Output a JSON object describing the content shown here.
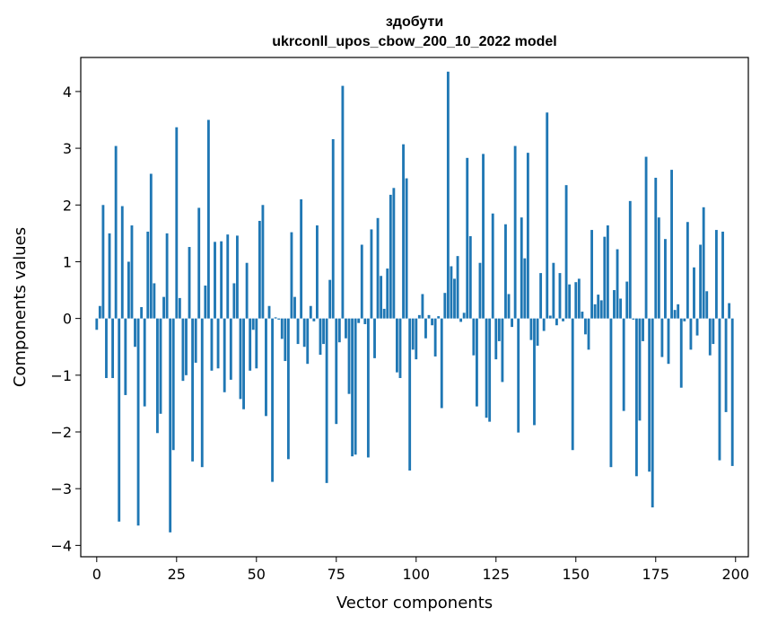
{
  "chart_data": {
    "type": "bar",
    "title_line1": "здобути",
    "title_line2": "ukrconll_upos_cbow_200_10_2022 model",
    "xlabel": "Vector components",
    "ylabel": "Components values",
    "xlim": [
      -5,
      204
    ],
    "ylim": [
      -4.2,
      4.6
    ],
    "xticks": [
      0,
      25,
      50,
      75,
      100,
      125,
      150,
      175,
      200
    ],
    "yticks": [
      -4,
      -3,
      -2,
      -1,
      0,
      1,
      2,
      3,
      4
    ],
    "xtick_labels": [
      "0",
      "25",
      "50",
      "75",
      "100",
      "125",
      "150",
      "175",
      "200"
    ],
    "ytick_labels": [
      "−4",
      "−3",
      "−2",
      "−1",
      "0",
      "1",
      "2",
      "3",
      "4"
    ],
    "bar_color": "#1f77b4",
    "grid": false,
    "legend": "none",
    "x": [
      0,
      1,
      2,
      3,
      4,
      5,
      6,
      7,
      8,
      9,
      10,
      11,
      12,
      13,
      14,
      15,
      16,
      17,
      18,
      19,
      20,
      21,
      22,
      23,
      24,
      25,
      26,
      27,
      28,
      29,
      30,
      31,
      32,
      33,
      34,
      35,
      36,
      37,
      38,
      39,
      40,
      41,
      42,
      43,
      44,
      45,
      46,
      47,
      48,
      49,
      50,
      51,
      52,
      53,
      54,
      55,
      56,
      57,
      58,
      59,
      60,
      61,
      62,
      63,
      64,
      65,
      66,
      67,
      68,
      69,
      70,
      71,
      72,
      73,
      74,
      75,
      76,
      77,
      78,
      79,
      80,
      81,
      82,
      83,
      84,
      85,
      86,
      87,
      88,
      89,
      90,
      91,
      92,
      93,
      94,
      95,
      96,
      97,
      98,
      99,
      100,
      101,
      102,
      103,
      104,
      105,
      106,
      107,
      108,
      109,
      110,
      111,
      112,
      113,
      114,
      115,
      116,
      117,
      118,
      119,
      120,
      121,
      122,
      123,
      124,
      125,
      126,
      127,
      128,
      129,
      130,
      131,
      132,
      133,
      134,
      135,
      136,
      137,
      138,
      139,
      140,
      141,
      142,
      143,
      144,
      145,
      146,
      147,
      148,
      149,
      150,
      151,
      152,
      153,
      154,
      155,
      156,
      157,
      158,
      159,
      160,
      161,
      162,
      163,
      164,
      165,
      166,
      167,
      168,
      169,
      170,
      171,
      172,
      173,
      174,
      175,
      176,
      177,
      178,
      179,
      180,
      181,
      182,
      183,
      184,
      185,
      186,
      187,
      188,
      189,
      190,
      191,
      192,
      193,
      194,
      195,
      196,
      197,
      198,
      199
    ],
    "values": [
      -0.2,
      0.22,
      2.0,
      -1.05,
      1.5,
      -1.05,
      3.04,
      -3.58,
      1.98,
      -1.35,
      1.0,
      1.64,
      -0.5,
      -3.65,
      0.2,
      -1.55,
      1.53,
      2.55,
      0.62,
      -2.02,
      -1.68,
      0.38,
      1.5,
      -3.77,
      -2.32,
      3.37,
      0.36,
      -1.1,
      -1.0,
      1.26,
      -2.52,
      -0.78,
      1.95,
      -2.62,
      0.58,
      3.5,
      -0.92,
      1.35,
      -0.88,
      1.36,
      -1.3,
      1.48,
      -1.08,
      0.62,
      1.46,
      -1.42,
      -1.6,
      0.98,
      -0.92,
      -0.2,
      -0.88,
      1.72,
      2.0,
      -1.72,
      0.22,
      -2.88,
      0.02,
      -0.02,
      -0.36,
      -0.75,
      -2.48,
      1.52,
      0.38,
      -0.45,
      2.1,
      -0.5,
      -0.8,
      0.22,
      -0.05,
      1.64,
      -0.64,
      -0.45,
      -2.9,
      0.68,
      3.16,
      -1.86,
      -0.42,
      4.1,
      -0.35,
      -1.33,
      -2.43,
      -2.4,
      -0.08,
      1.3,
      -0.1,
      -2.45,
      1.57,
      -0.7,
      1.77,
      0.75,
      0.17,
      0.88,
      2.18,
      2.3,
      -0.95,
      -1.05,
      3.07,
      2.47,
      -2.68,
      -0.55,
      -0.72,
      0.06,
      0.43,
      -0.35,
      0.06,
      -0.12,
      -0.67,
      0.04,
      -1.58,
      0.45,
      4.35,
      0.92,
      0.7,
      1.1,
      -0.06,
      0.1,
      2.83,
      1.45,
      -0.65,
      -1.55,
      0.98,
      2.9,
      -1.75,
      -1.82,
      1.85,
      -0.72,
      -0.4,
      -1.12,
      1.66,
      0.43,
      -0.15,
      3.04,
      -2.01,
      1.78,
      1.06,
      2.92,
      -0.38,
      -1.88,
      -0.48,
      0.8,
      -0.22,
      3.63,
      0.05,
      0.98,
      -0.12,
      0.8,
      -0.05,
      2.35,
      0.6,
      -2.32,
      0.64,
      0.7,
      0.12,
      -0.28,
      -0.55,
      1.56,
      0.25,
      0.42,
      0.32,
      1.44,
      1.64,
      -2.62,
      0.5,
      1.22,
      0.35,
      -1.63,
      0.65,
      2.07,
      -0.02,
      -2.78,
      -1.8,
      -0.4,
      2.85,
      -2.7,
      -3.33,
      2.48,
      1.78,
      -0.68,
      1.4,
      -0.8,
      2.62,
      0.15,
      0.25,
      -1.22,
      -0.05,
      1.7,
      -0.55,
      0.9,
      -0.3,
      1.3,
      1.96,
      0.48,
      -0.65,
      -0.45,
      1.56,
      -2.5,
      1.53,
      -1.65,
      0.27,
      -2.6
    ]
  }
}
